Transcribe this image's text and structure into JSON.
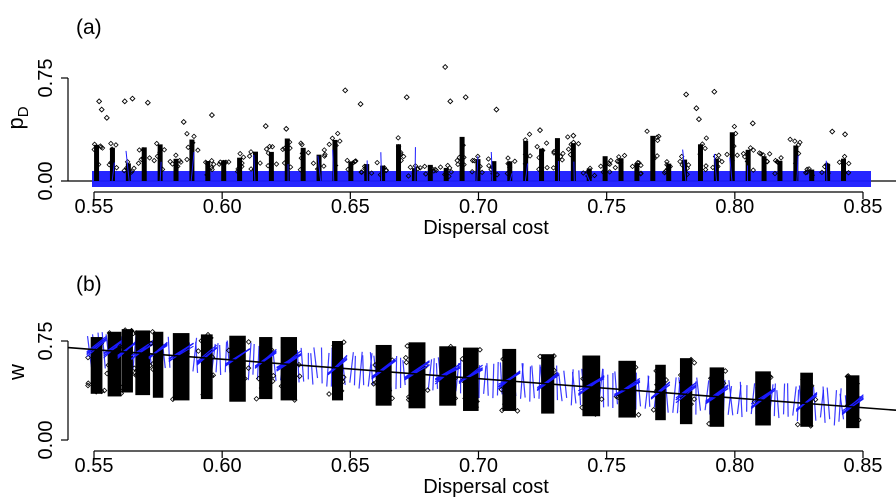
{
  "chart_data": [
    {
      "type": "scatter",
      "panel_label": "(a)",
      "ylabel_main": "p",
      "ylabel_sub": "D",
      "xlabel": "Dispersal cost",
      "xlim": [
        0.545,
        0.855
      ],
      "ylim": [
        -0.03,
        0.95
      ],
      "xticks": [
        0.55,
        0.6,
        0.65,
        0.7,
        0.75,
        0.8,
        0.85
      ],
      "xtick_labels": [
        "0.55",
        "0.60",
        "0.65",
        "0.70",
        "0.75",
        "0.80",
        "0.85"
      ],
      "yticks": [
        0.0,
        0.75
      ],
      "ytick_labels": [
        "0.00",
        "0.75"
      ],
      "series": [
        {
          "color": "#000000",
          "marker": "open-diamond",
          "x": [
            0.552,
            0.553,
            0.555,
            0.562,
            0.565,
            0.571,
            0.585,
            0.596,
            0.617,
            0.625,
            0.648,
            0.654,
            0.672,
            0.687,
            0.689,
            0.695,
            0.707,
            0.724,
            0.737,
            0.781,
            0.785,
            0.786,
            0.792,
            0.807,
            0.838,
            0.843
          ],
          "y": [
            0.58,
            0.52,
            0.46,
            0.58,
            0.6,
            0.57,
            0.43,
            0.48,
            0.4,
            0.38,
            0.66,
            0.56,
            0.61,
            0.83,
            0.58,
            0.61,
            0.52,
            0.37,
            0.33,
            0.63,
            0.53,
            0.45,
            0.65,
            0.42,
            0.36,
            0.34
          ]
        }
      ],
      "reference_line": {
        "type": "horizontal",
        "y": 0.0
      }
    },
    {
      "type": "scatter",
      "panel_label": "(b)",
      "ylabel_main": "w",
      "xlabel": "Dispersal cost",
      "xlim": [
        0.545,
        0.855
      ],
      "ylim": [
        -0.05,
        0.98
      ],
      "xticks": [
        0.55,
        0.6,
        0.65,
        0.7,
        0.75,
        0.8,
        0.85
      ],
      "xtick_labels": [
        "0.55",
        "0.60",
        "0.65",
        "0.70",
        "0.75",
        "0.80",
        "0.85"
      ],
      "yticks": [
        0.0,
        0.75
      ],
      "ytick_labels": [
        "0.00",
        "0.75"
      ],
      "series": [
        {
          "color": "#000000",
          "marker": "open-diamond",
          "x": [
            0.551,
            0.558,
            0.563,
            0.569,
            0.575,
            0.584,
            0.594,
            0.606,
            0.617,
            0.626,
            0.645,
            0.663,
            0.676,
            0.688,
            0.697,
            0.712,
            0.727,
            0.744,
            0.758,
            0.771,
            0.781,
            0.793,
            0.811,
            0.828,
            0.846
          ],
          "ylow": [
            0.35,
            0.33,
            0.36,
            0.34,
            0.32,
            0.3,
            0.31,
            0.29,
            0.31,
            0.3,
            0.3,
            0.26,
            0.24,
            0.26,
            0.22,
            0.22,
            0.2,
            0.18,
            0.17,
            0.15,
            0.12,
            0.1,
            0.11,
            0.1,
            0.09
          ],
          "yhigh": [
            0.78,
            0.82,
            0.84,
            0.83,
            0.82,
            0.81,
            0.8,
            0.79,
            0.78,
            0.78,
            0.75,
            0.72,
            0.74,
            0.71,
            0.7,
            0.69,
            0.65,
            0.64,
            0.6,
            0.57,
            0.62,
            0.55,
            0.52,
            0.51,
            0.49
          ]
        }
      ],
      "trend_line": {
        "x": [
          0.545,
          0.855
        ],
        "y": [
          0.7,
          0.23
        ]
      }
    }
  ]
}
